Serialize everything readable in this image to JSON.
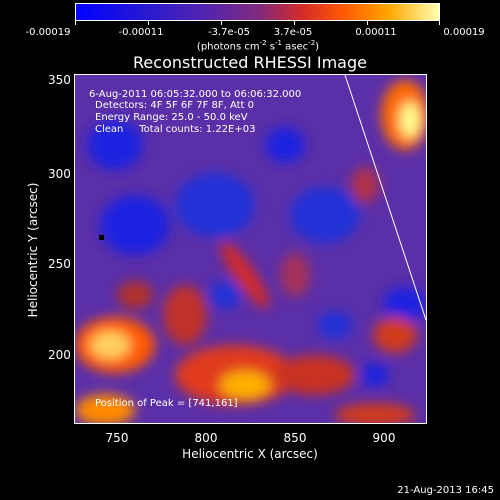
{
  "colorbar": {
    "tick_labels": [
      "-0.00019",
      "-0.00011",
      "-3.7e-05",
      "3.7e-05",
      "0.00011",
      "0.00019"
    ],
    "unit_prefix": "(photons cm",
    "unit_exp1": "-2",
    "unit_mid": " s",
    "unit_exp2": "-1",
    "unit_mid2": " asec",
    "unit_exp3": "-2",
    "unit_suffix": ")"
  },
  "title": "Reconstructed RHESSI Image",
  "annotations": {
    "time_range": "6-Aug-2011 06:05:32.000 to 06:06:32.000",
    "detectors": "Detectors: 4F 5F 6F 7F 8F, Att 0",
    "energy": "Energy Range: 25.0 - 50.0 keV",
    "clean": "Clean     Total counts: 1.22E+03",
    "peak": "Position of Peak = [741,161]"
  },
  "x_axis": {
    "label": "Heliocentric X (arcsec)",
    "ticks": [
      "750",
      "800",
      "850",
      "900"
    ]
  },
  "y_axis": {
    "label": "Heliocentric Y (arcsec)",
    "ticks": [
      "350",
      "300",
      "250",
      "200"
    ]
  },
  "timestamp": "21-Aug-2013 16:45",
  "colors": {
    "negative": "#0000ff",
    "background": "#5b2fa8",
    "positive_low": "#c0302a",
    "positive_mid": "#ff7a00",
    "positive_high": "#ffffa0"
  }
}
